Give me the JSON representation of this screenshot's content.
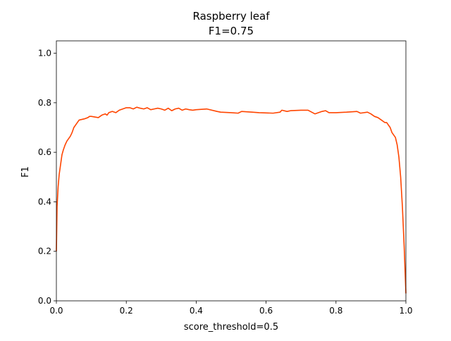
{
  "chart_data": {
    "type": "line",
    "title": "Raspberry leaf",
    "subtitle": "F1=0.75",
    "xlabel": "score_threshold=0.5",
    "ylabel": "F1",
    "xlim": [
      0.0,
      1.0
    ],
    "ylim": [
      0.0,
      1.05
    ],
    "x_ticks": [
      0.0,
      0.2,
      0.4,
      0.6,
      0.8,
      1.0
    ],
    "x_tick_labels": [
      "0.0",
      "0.2",
      "0.4",
      "0.6",
      "0.8",
      "1.0"
    ],
    "y_ticks": [
      0.0,
      0.2,
      0.4,
      0.6,
      0.8,
      1.0
    ],
    "y_tick_labels": [
      "0.0",
      "0.2",
      "0.4",
      "0.6",
      "0.8",
      "1.0"
    ],
    "grid": false,
    "legend": "none",
    "series": [
      {
        "color": "#ff4500",
        "x": [
          0.0,
          0.002,
          0.005,
          0.008,
          0.012,
          0.016,
          0.02,
          0.025,
          0.03,
          0.035,
          0.04,
          0.045,
          0.05,
          0.06,
          0.065,
          0.08,
          0.09,
          0.095,
          0.1,
          0.12,
          0.13,
          0.14,
          0.145,
          0.15,
          0.16,
          0.17,
          0.18,
          0.19,
          0.2,
          0.21,
          0.22,
          0.23,
          0.24,
          0.25,
          0.26,
          0.27,
          0.28,
          0.29,
          0.3,
          0.31,
          0.32,
          0.33,
          0.34,
          0.35,
          0.36,
          0.37,
          0.38,
          0.39,
          0.4,
          0.43,
          0.46,
          0.47,
          0.5,
          0.52,
          0.53,
          0.56,
          0.58,
          0.62,
          0.64,
          0.645,
          0.66,
          0.67,
          0.7,
          0.72,
          0.74,
          0.76,
          0.77,
          0.78,
          0.8,
          0.83,
          0.86,
          0.87,
          0.89,
          0.9,
          0.91,
          0.92,
          0.93,
          0.94,
          0.945,
          0.95,
          0.955,
          0.96,
          0.965,
          0.97,
          0.975,
          0.98,
          0.985,
          0.99,
          0.995,
          1.0
        ],
        "values": [
          0.2,
          0.38,
          0.46,
          0.51,
          0.55,
          0.59,
          0.61,
          0.63,
          0.645,
          0.655,
          0.665,
          0.68,
          0.7,
          0.72,
          0.73,
          0.735,
          0.74,
          0.745,
          0.745,
          0.74,
          0.75,
          0.755,
          0.75,
          0.76,
          0.765,
          0.76,
          0.77,
          0.775,
          0.78,
          0.78,
          0.775,
          0.782,
          0.778,
          0.775,
          0.78,
          0.772,
          0.775,
          0.778,
          0.775,
          0.77,
          0.778,
          0.768,
          0.775,
          0.778,
          0.77,
          0.775,
          0.772,
          0.77,
          0.772,
          0.775,
          0.765,
          0.762,
          0.76,
          0.758,
          0.765,
          0.762,
          0.76,
          0.758,
          0.762,
          0.77,
          0.765,
          0.768,
          0.77,
          0.77,
          0.755,
          0.765,
          0.768,
          0.76,
          0.76,
          0.762,
          0.765,
          0.758,
          0.762,
          0.755,
          0.745,
          0.74,
          0.73,
          0.72,
          0.72,
          0.71,
          0.7,
          0.68,
          0.67,
          0.66,
          0.63,
          0.58,
          0.5,
          0.38,
          0.22,
          0.03
        ]
      }
    ]
  }
}
